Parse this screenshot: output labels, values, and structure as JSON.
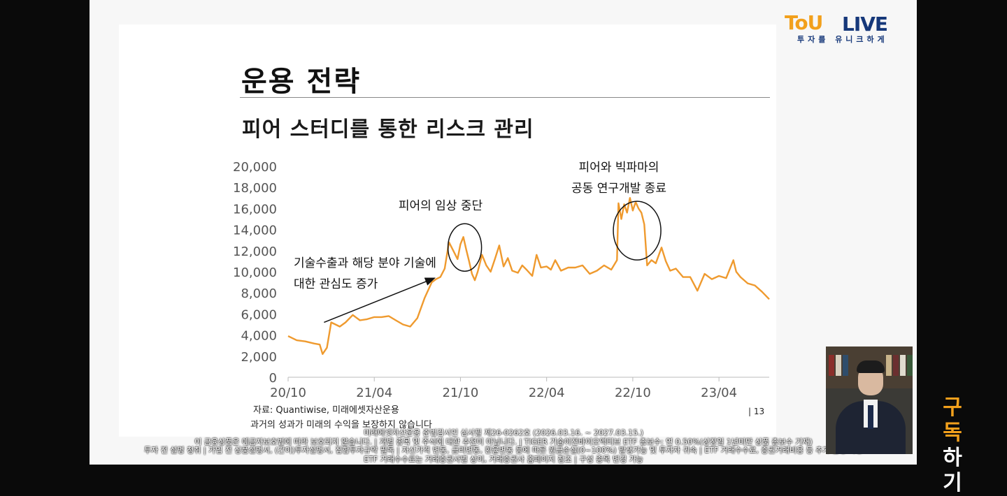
{
  "logo": {
    "mark": "ToU",
    "live": "LIVE",
    "tagline": "투자를 유니크하게"
  },
  "slide": {
    "title": "운용 전략",
    "subtitle": "피어 스터디를 통한 리스크 관리",
    "source": "자료: Quantiwise, 미래에셋자산운용",
    "disclaimer": "과거의 성과가 미래의 수익을 보장하지 않습니다",
    "page": "| 13"
  },
  "colors": {
    "line": "#ef9a2e",
    "accent": "#f2a01c",
    "brand": "#16387a"
  },
  "chart_data": {
    "type": "line",
    "ylim": [
      0,
      20000
    ],
    "y_ticks": [
      "0",
      "2,000",
      "4,000",
      "6,000",
      "8,000",
      "10,000",
      "12,000",
      "14,000",
      "16,000",
      "18,000",
      "20,000"
    ],
    "x_ticks": [
      "20/10",
      "21/04",
      "21/10",
      "22/04",
      "22/10",
      "23/04"
    ],
    "x_tick_index": [
      0,
      6,
      12,
      18,
      24,
      30
    ],
    "x_range": [
      0,
      33.5
    ],
    "series": [
      {
        "name": "price",
        "x": [
          0,
          0.6,
          1.2,
          1.8,
          2.2,
          2.4,
          2.7,
          3.0,
          3.3,
          3.6,
          4.0,
          4.5,
          5.0,
          5.5,
          6.0,
          6.5,
          7.0,
          7.5,
          8.0,
          8.5,
          9.0,
          9.5,
          10.0,
          10.3,
          10.6,
          10.9,
          11.2,
          11.5,
          11.8,
          12.0,
          12.2,
          12.4,
          12.6,
          12.8,
          13.0,
          13.2,
          13.5,
          13.8,
          14.1,
          14.4,
          14.7,
          15.0,
          15.3,
          15.6,
          16.0,
          16.3,
          16.6,
          17.0,
          17.3,
          17.6,
          18.0,
          18.3,
          18.6,
          19.0,
          19.5,
          20.0,
          20.5,
          21.0,
          21.5,
          22.0,
          22.5,
          22.9,
          23.0,
          23.2,
          23.4,
          23.6,
          23.8,
          24.0,
          24.2,
          24.4,
          24.6,
          24.8,
          25.0,
          25.3,
          25.6,
          26.0,
          26.3,
          26.6,
          27.0,
          27.5,
          28.0,
          28.5,
          29.0,
          29.5,
          30.0,
          30.5,
          31.0,
          31.2,
          31.5,
          32.0,
          32.5,
          33.0,
          33.5
        ],
        "y": [
          3900,
          3500,
          3400,
          3200,
          3100,
          2200,
          2800,
          5200,
          5000,
          4800,
          5200,
          5900,
          5400,
          5500,
          5700,
          5700,
          5800,
          5400,
          5000,
          4800,
          5600,
          7500,
          9000,
          9300,
          9500,
          10300,
          12800,
          12000,
          11200,
          12600,
          13300,
          12100,
          11000,
          9800,
          9200,
          10000,
          11600,
          10600,
          10000,
          11200,
          12500,
          10500,
          11300,
          10100,
          9900,
          10600,
          10200,
          9600,
          11600,
          10400,
          10500,
          10200,
          11100,
          10100,
          10400,
          10400,
          10600,
          9800,
          10100,
          10600,
          10200,
          11100,
          16500,
          15000,
          16400,
          15600,
          17000,
          15800,
          16600,
          16000,
          15600,
          14500,
          10600,
          11100,
          10800,
          12300,
          11000,
          10100,
          10300,
          9500,
          9500,
          8200,
          9800,
          9300,
          9600,
          9400,
          11100,
          10000,
          9500,
          8900,
          8700,
          8100,
          7400
        ]
      }
    ],
    "annotations": [
      {
        "text": [
          "기술수출과 해당 분야 기술에",
          "대한 관심도 증가"
        ],
        "kind": "arrow",
        "from_x": 2.5,
        "from_y": 5200,
        "to_x": 10.2,
        "to_y": 9400
      },
      {
        "text": [
          "피어의 임상 중단"
        ],
        "kind": "circle",
        "cx": 12.3,
        "cy": 12300
      },
      {
        "text": [
          "피어와 빅파마의",
          "공동 연구개발 종료"
        ],
        "kind": "circle",
        "cx": 24.3,
        "cy": 13900
      }
    ]
  },
  "footer": {
    "lines": [
      "미래에셋자산운용 준법감시인 심사필 제26-0262호 (2026.03.16. ~ 2027.03.15.)",
      "이 금융상품은 예금자보호법에 따라 보호되지 않습니다. | 개별 종목 및 주식에 대한 추천이 아닙니다. | TIGER 기술이전바이오액티브 ETF 총보수: 연 0.50%(상장일 1년미만 상품 총보수 기재)",
      "투자 전 설명 청취 | 가입 전 상품설명서, (간이)투자설명서, 집합투자규약 필독 | 자산가격 변동, 금리변동, 환율변동 등에 따른 원금손실(0~100%) 발생가능 및 투자자 귀속 | ETF 거래수수료, 증권거래비용 등 추가 발생 가능",
      "ETF 거래수수료는 거래증권사별 상이, 거래증권사 홈페이지 참조 | 구성 종목 변경 가능"
    ]
  },
  "subscribe": {
    "top": "구독",
    "bottom": "하기"
  }
}
